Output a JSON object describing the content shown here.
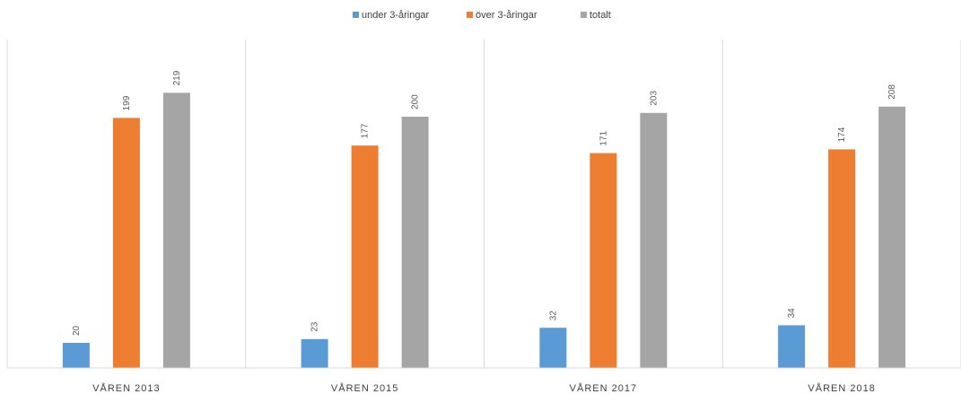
{
  "chart_data": {
    "type": "bar",
    "title": "",
    "xlabel": "",
    "ylabel": "",
    "categories": [
      "VÅREN 2013",
      "VÅREN 2015",
      "VÅREN 2017",
      "VÅREN 2018"
    ],
    "series": [
      {
        "name": "under 3-åringar",
        "color": "#5b9bd5",
        "values": [
          20,
          23,
          32,
          34
        ]
      },
      {
        "name": "över 3-åringar",
        "color": "#ed7d31",
        "values": [
          199,
          177,
          171,
          174
        ]
      },
      {
        "name": "totalt",
        "color": "#a5a5a5",
        "values": [
          219,
          200,
          203,
          208
        ]
      }
    ],
    "ylim": [
      0,
      240
    ],
    "grid": false,
    "category_separators": true,
    "legend": "top-center",
    "data_labels": true,
    "data_label_orientation": "vertical"
  }
}
